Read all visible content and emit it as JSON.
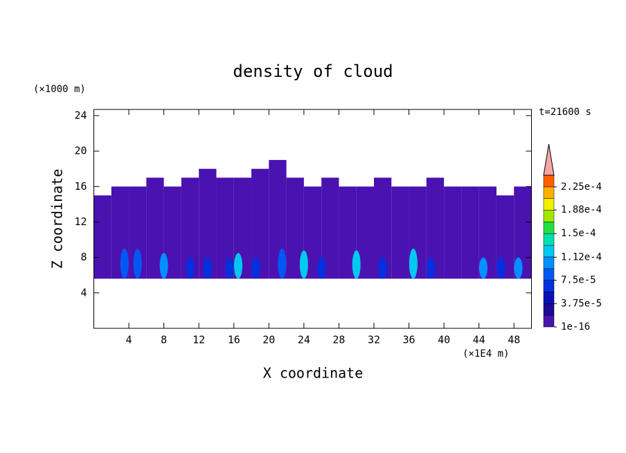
{
  "chart_data": {
    "type": "contour",
    "title": "density of cloud",
    "x_label": "X coordinate",
    "y_label": "Z coordinate",
    "x_unit": "(×1E4 m)",
    "y_unit": "(×1000 m)",
    "time_label": "t=21600 s",
    "xlim": [
      0,
      50
    ],
    "ylim": [
      0,
      24.7
    ],
    "xticks": [
      4,
      8,
      12,
      16,
      20,
      24,
      28,
      32,
      36,
      40,
      44,
      48
    ],
    "yticks": [
      4,
      8,
      12,
      16,
      20,
      24
    ],
    "levels": [
      1e-16,
      1.875e-05,
      3.75e-05,
      5.625e-05,
      7.5e-05,
      9.375e-05,
      0.0001125,
      0.00013125,
      0.00015,
      0.00016875,
      0.0001875,
      0.00020625,
      0.000225,
      0.00024375
    ],
    "level_colors": [
      "#4a12b0",
      "#1e0a96",
      "#0a10b8",
      "#0030e0",
      "#0058f4",
      "#0090ff",
      "#00c8f0",
      "#00e0b0",
      "#20e040",
      "#a0e800",
      "#f0f000",
      "#ffb000",
      "#ff6000"
    ],
    "extend_color": "#f4a6a6",
    "colorbar_ticks": [
      {
        "value": 1e-16,
        "label": "1e-16"
      },
      {
        "value": 3.75e-05,
        "label": "3.75e-5"
      },
      {
        "value": 7.5e-05,
        "label": "7.5e-5"
      },
      {
        "value": 0.000112,
        "label": "1.12e-4"
      },
      {
        "value": 0.00015,
        "label": "1.5e-4"
      },
      {
        "value": 0.000188,
        "label": "1.88e-4"
      },
      {
        "value": 0.000225,
        "label": "2.25e-4"
      }
    ],
    "columns": {
      "x": [
        1,
        3,
        5,
        7,
        9,
        11,
        13,
        15,
        17,
        19,
        21,
        23,
        25,
        27,
        29,
        31,
        33,
        35,
        37,
        39,
        41,
        43,
        45,
        47,
        49
      ],
      "base": [
        5.6,
        5.6,
        5.6,
        5.6,
        5.6,
        5.6,
        5.6,
        5.6,
        5.6,
        5.6,
        5.6,
        5.6,
        5.6,
        5.6,
        5.6,
        5.6,
        5.6,
        5.6,
        5.6,
        5.6,
        5.6,
        5.6,
        5.6,
        5.6,
        5.6
      ],
      "top": [
        15,
        16,
        16,
        17,
        16,
        17,
        18,
        17,
        17,
        18,
        19,
        17,
        16,
        17,
        16,
        16,
        17,
        16,
        16,
        17,
        16,
        16,
        16,
        15,
        16
      ]
    },
    "cores": {
      "x": [
        3.5,
        5,
        8,
        11,
        13,
        15.5,
        16.5,
        18.5,
        21.5,
        24,
        26,
        30,
        33,
        36.5,
        38.5,
        44.5,
        46.5,
        48.5
      ],
      "top": [
        9,
        9,
        8.5,
        8,
        8,
        8,
        8.5,
        8,
        9,
        8.8,
        8,
        8.8,
        8,
        9,
        8,
        8,
        8,
        8
      ],
      "values": [
        7.5e-05,
        7.5e-05,
        0.00011,
        6e-05,
        6e-05,
        6e-05,
        0.00013,
        6e-05,
        7.5e-05,
        0.00013,
        6e-05,
        0.00013,
        6e-05,
        0.00012,
        6e-05,
        0.00011,
        6e-05,
        0.0001
      ]
    }
  }
}
